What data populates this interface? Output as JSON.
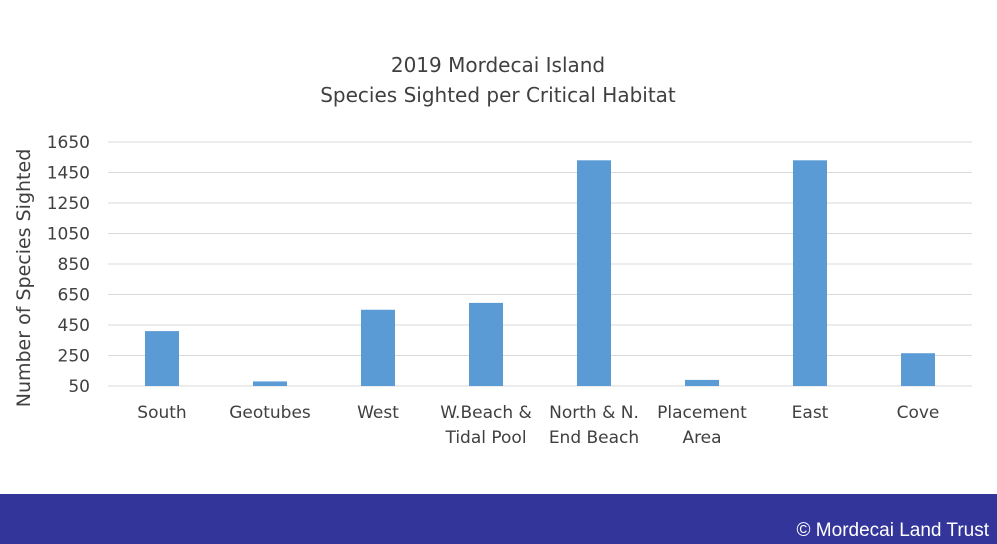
{
  "chart_data": {
    "type": "bar",
    "title": [
      "2019 Mordecai Island",
      "Species Sighted per Critical Habitat"
    ],
    "ylabel": "Number of Species Sighted",
    "xlabel": "",
    "categories": [
      [
        "South"
      ],
      [
        "Geotubes"
      ],
      [
        "West"
      ],
      [
        "W.Beach &",
        "Tidal Pool"
      ],
      [
        "North & N.",
        "End Beach"
      ],
      [
        "Placement",
        "Area"
      ],
      [
        "East"
      ],
      [
        "Cove"
      ]
    ],
    "values": [
      410,
      80,
      550,
      595,
      1530,
      90,
      1530,
      265
    ],
    "ylim": [
      50,
      1650
    ],
    "yticks": [
      50,
      250,
      450,
      650,
      850,
      1050,
      1250,
      1450,
      1650
    ],
    "grid": true,
    "legend": "none",
    "bar_color": "#5b9bd5"
  },
  "footer": {
    "copyright": "© Mordecai Land Trust",
    "background": "#33359a"
  }
}
